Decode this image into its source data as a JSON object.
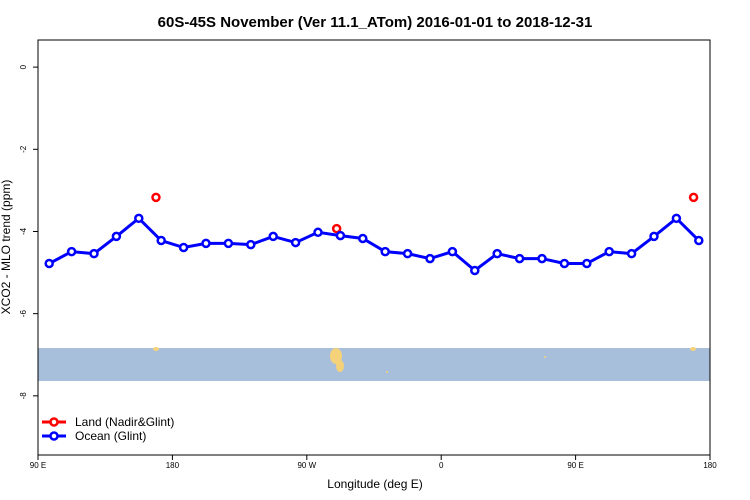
{
  "chart_data": {
    "type": "line",
    "title": "60S-45S November (Ver 11.1_ATom)   2016-01-01 to 2018-12-31",
    "x_label": "Longitude (deg E)",
    "y_label": "XCO2 - MLO trend (ppm)",
    "xlim": [
      90,
      540
    ],
    "xticks": [
      {
        "value": 90,
        "label": "90 E"
      },
      180,
      {
        "value": 270,
        "label": "90 W"
      },
      {
        "value": 360,
        "label": "0"
      },
      {
        "value": 450,
        "label": "90 E"
      },
      {
        "value": 540,
        "label": "180"
      }
    ],
    "ylim": [
      -9.44,
      0.66
    ],
    "yticks": [
      0,
      -2,
      -4,
      -6,
      -8
    ],
    "legend": "bottom-left",
    "series": [
      {
        "name": "Land (Nadir&Glint)",
        "color": "#ff0000",
        "line": false,
        "x": [
          169,
          290,
          529
        ],
        "values": [
          -3.17,
          -3.93,
          -3.17
        ]
      },
      {
        "name": "Ocean (Glint)",
        "color": "#0000ff",
        "line": true,
        "x": [
          97.5,
          112.5,
          127.5,
          142.5,
          157.5,
          172.5,
          187.5,
          202.5,
          217.5,
          232.5,
          247.5,
          262.5,
          277.5,
          292.5,
          307.5,
          322.5,
          337.5,
          352.5,
          367.5,
          382.5,
          397.5,
          412.5,
          427.5,
          442.5,
          457.5,
          472.5,
          487.5,
          502.5,
          517.5,
          532.5
        ],
        "values": [
          -4.78,
          -4.49,
          -4.54,
          -4.12,
          -3.68,
          -4.22,
          -4.39,
          -4.29,
          -4.29,
          -4.32,
          -4.12,
          -4.27,
          -4.02,
          -4.1,
          -4.17,
          -4.49,
          -4.54,
          -4.66,
          -4.49,
          -4.95,
          -4.54,
          -4.66,
          -4.66,
          -4.78,
          -4.78,
          -4.49,
          -4.54,
          -4.12,
          -3.68,
          -4.22
        ]
      }
    ]
  }
}
